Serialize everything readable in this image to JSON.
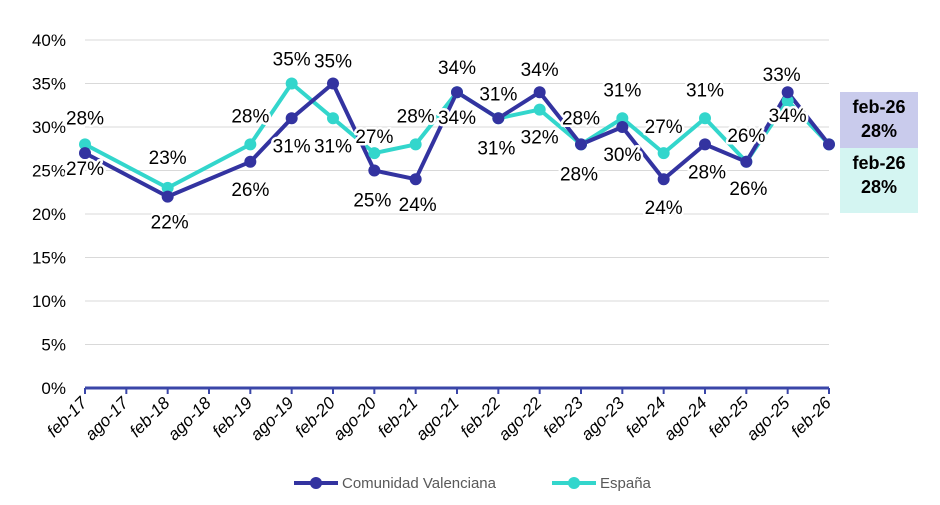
{
  "chart_data": {
    "type": "line",
    "x": [
      "feb-17",
      "ago-17",
      "feb-18",
      "ago-18",
      "feb-19",
      "ago-19",
      "feb-20",
      "ago-20",
      "feb-21",
      "ago-21",
      "feb-22",
      "ago-22",
      "feb-23",
      "ago-23",
      "feb-24",
      "ago-24",
      "feb-25",
      "ago-25",
      "feb-26"
    ],
    "x_ticks": [
      "feb-17",
      "ago-17",
      "feb-18",
      "ago-18",
      "feb-19",
      "ago-19",
      "feb-20",
      "ago-20",
      "feb-21",
      "ago-21",
      "feb-22",
      "ago-22",
      "feb-23",
      "ago-23",
      "feb-24",
      "ago-24",
      "feb-25",
      "ago-25",
      "feb-26"
    ],
    "ylim": [
      0,
      40
    ],
    "y_ticks": [
      "0%",
      "5%",
      "10%",
      "15%",
      "20%",
      "25%",
      "30%",
      "35%",
      "40%"
    ],
    "grid": true,
    "legend": "bottom",
    "series": [
      {
        "name": "Comunidad Valenciana",
        "color": "#3333a0",
        "values": [
          {
            "x": "feb-17",
            "y": 27,
            "label": "27%"
          },
          {
            "x": "feb-18",
            "y": 22,
            "label": "22%"
          },
          {
            "x": "feb-19",
            "y": 26,
            "label": "26%"
          },
          {
            "x": "ago-19",
            "y": 31,
            "label": "31%"
          },
          {
            "x": "feb-20",
            "y": 35,
            "label": "35%"
          },
          {
            "x": "ago-20",
            "y": 25,
            "label": "25%"
          },
          {
            "x": "feb-21",
            "y": 24,
            "label": "24%"
          },
          {
            "x": "ago-21",
            "y": 34,
            "label": "34%"
          },
          {
            "x": "feb-22",
            "y": 31,
            "label": "31%"
          },
          {
            "x": "ago-22",
            "y": 34,
            "label": "34%"
          },
          {
            "x": "feb-23",
            "y": 28,
            "label": "28%"
          },
          {
            "x": "ago-23",
            "y": 30,
            "label": "30%"
          },
          {
            "x": "feb-24",
            "y": 24,
            "label": "24%"
          },
          {
            "x": "ago-24",
            "y": 28,
            "label": "28%"
          },
          {
            "x": "feb-25",
            "y": 26,
            "label": "26%"
          },
          {
            "x": "ago-25",
            "y": 34,
            "label": "34%"
          },
          {
            "x": "feb-26",
            "y": 28,
            "label": "28%"
          }
        ]
      },
      {
        "name": "España",
        "color": "#33d6cc",
        "values": [
          {
            "x": "feb-17",
            "y": 28,
            "label": "28%"
          },
          {
            "x": "feb-18",
            "y": 23,
            "label": "23%"
          },
          {
            "x": "feb-19",
            "y": 28,
            "label": "28%"
          },
          {
            "x": "ago-19",
            "y": 35,
            "label": "35%"
          },
          {
            "x": "feb-20",
            "y": 31,
            "label": "31%"
          },
          {
            "x": "ago-20",
            "y": 27,
            "label": "27%"
          },
          {
            "x": "feb-21",
            "y": 28,
            "label": "28%"
          },
          {
            "x": "ago-21",
            "y": 34,
            "label": "34%"
          },
          {
            "x": "feb-22",
            "y": 31,
            "label": "31%"
          },
          {
            "x": "ago-22",
            "y": 32,
            "label": "32%"
          },
          {
            "x": "feb-23",
            "y": 28,
            "label": "28%"
          },
          {
            "x": "ago-23",
            "y": 31,
            "label": "31%"
          },
          {
            "x": "feb-24",
            "y": 27,
            "label": "27%"
          },
          {
            "x": "ago-24",
            "y": 31,
            "label": "31%"
          },
          {
            "x": "feb-25",
            "y": 26,
            "label": "26%"
          },
          {
            "x": "ago-25",
            "y": 33,
            "label": "33%"
          },
          {
            "x": "feb-26",
            "y": 28,
            "label": "28%"
          }
        ]
      }
    ],
    "end_labels": [
      {
        "series": "Comunidad Valenciana",
        "period": "feb-26",
        "value": "28%",
        "background": "#c9cbec"
      },
      {
        "series": "España",
        "period": "feb-26",
        "value": "28%",
        "background": "#d4f5f2"
      }
    ]
  }
}
